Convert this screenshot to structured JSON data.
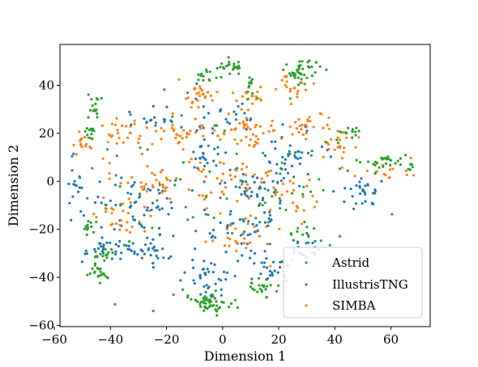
{
  "chart_data": {
    "type": "scatter",
    "title": "",
    "xlabel": "Dimension 1",
    "ylabel": "Dimension 2",
    "xlim": [
      -58,
      74
    ],
    "ylim": [
      -60.5,
      57
    ],
    "xticks": [
      -60,
      -40,
      -20,
      0,
      20,
      40,
      60
    ],
    "yticks": [
      -60,
      -40,
      -20,
      0,
      20,
      40
    ],
    "grid": false,
    "legend": "bottom-right",
    "series": [
      {
        "name": "Astrid",
        "color": "#2ca02c",
        "clusters": [
          {
            "cx": 3,
            "cy": 48,
            "rx": 4,
            "ry": 3,
            "n": 22
          },
          {
            "cx": 28,
            "cy": 46,
            "rx": 6,
            "ry": 4,
            "n": 40
          },
          {
            "cx": -7,
            "cy": 43,
            "rx": 3,
            "ry": 3,
            "n": 12
          },
          {
            "cx": 10,
            "cy": 40,
            "rx": 2,
            "ry": 4,
            "n": 12
          },
          {
            "cx": -46,
            "cy": 30,
            "rx": 2,
            "ry": 4,
            "n": 16
          },
          {
            "cx": -47,
            "cy": 20,
            "rx": 2,
            "ry": 4,
            "n": 12
          },
          {
            "cx": -5,
            "cy": -50,
            "rx": 6,
            "ry": 4,
            "n": 55
          },
          {
            "cx": -44,
            "cy": -38,
            "rx": 3,
            "ry": 3,
            "n": 22
          },
          {
            "cx": -42,
            "cy": -30,
            "rx": 4,
            "ry": 3,
            "n": 14
          },
          {
            "cx": 56,
            "cy": 8,
            "rx": 7,
            "ry": 3,
            "n": 28
          },
          {
            "cx": 66,
            "cy": 7,
            "rx": 2,
            "ry": 2,
            "n": 8
          },
          {
            "cx": 43,
            "cy": 20,
            "rx": 4,
            "ry": 4,
            "n": 14
          },
          {
            "cx": 14,
            "cy": -45,
            "rx": 5,
            "ry": 4,
            "n": 24
          },
          {
            "cx": -48,
            "cy": -20,
            "rx": 3,
            "ry": 4,
            "n": 12
          },
          {
            "cx": 30,
            "cy": -22,
            "rx": 6,
            "ry": 4,
            "n": 14
          },
          {
            "cx": -8,
            "cy": 0,
            "rx": 48,
            "ry": 30,
            "n": 80
          }
        ]
      },
      {
        "name": "IllustrisTNG",
        "color": "#1f77b4",
        "clusters": [
          {
            "cx": -40,
            "cy": -28,
            "rx": 8,
            "ry": 5,
            "n": 30
          },
          {
            "cx": -25,
            "cy": -30,
            "rx": 8,
            "ry": 4,
            "n": 30
          },
          {
            "cx": -5,
            "cy": -40,
            "rx": 8,
            "ry": 6,
            "n": 35
          },
          {
            "cx": 15,
            "cy": -35,
            "rx": 8,
            "ry": 6,
            "n": 30
          },
          {
            "cx": 30,
            "cy": -28,
            "rx": 6,
            "ry": 5,
            "n": 20
          },
          {
            "cx": 50,
            "cy": -5,
            "rx": 6,
            "ry": 6,
            "n": 30
          },
          {
            "cx": -52,
            "cy": 0,
            "rx": 3,
            "ry": 8,
            "n": 20
          },
          {
            "cx": -5,
            "cy": 10,
            "rx": 8,
            "ry": 6,
            "n": 25
          },
          {
            "cx": 10,
            "cy": -5,
            "rx": 10,
            "ry": 10,
            "n": 45
          },
          {
            "cx": -30,
            "cy": -10,
            "rx": 15,
            "ry": 10,
            "n": 55
          },
          {
            "cx": 25,
            "cy": 10,
            "rx": 10,
            "ry": 10,
            "n": 40
          },
          {
            "cx": 0,
            "cy": 28,
            "rx": 10,
            "ry": 6,
            "n": 25
          },
          {
            "cx": -25,
            "cy": 25,
            "rx": 8,
            "ry": 4,
            "n": 20
          },
          {
            "cx": 5,
            "cy": -20,
            "rx": 12,
            "ry": 6,
            "n": 35
          }
        ]
      },
      {
        "name": "SIMBA",
        "color": "#ff7f0e",
        "clusters": [
          {
            "cx": -8,
            "cy": 35,
            "rx": 6,
            "ry": 5,
            "n": 24
          },
          {
            "cx": 25,
            "cy": 40,
            "rx": 5,
            "ry": 4,
            "n": 18
          },
          {
            "cx": 10,
            "cy": 35,
            "rx": 6,
            "ry": 4,
            "n": 18
          },
          {
            "cx": -50,
            "cy": 15,
            "rx": 3,
            "ry": 5,
            "n": 15
          },
          {
            "cx": -35,
            "cy": 20,
            "rx": 10,
            "ry": 6,
            "n": 30
          },
          {
            "cx": -15,
            "cy": 20,
            "rx": 8,
            "ry": 5,
            "n": 25
          },
          {
            "cx": 10,
            "cy": 20,
            "rx": 12,
            "ry": 6,
            "n": 40
          },
          {
            "cx": 30,
            "cy": 25,
            "rx": 8,
            "ry": 5,
            "n": 30
          },
          {
            "cx": 42,
            "cy": 15,
            "rx": 5,
            "ry": 6,
            "n": 20
          },
          {
            "cx": -25,
            "cy": 0,
            "rx": 12,
            "ry": 8,
            "n": 40
          },
          {
            "cx": 0,
            "cy": 0,
            "rx": 10,
            "ry": 8,
            "n": 35
          },
          {
            "cx": 25,
            "cy": -5,
            "rx": 10,
            "ry": 8,
            "n": 30
          },
          {
            "cx": -35,
            "cy": -15,
            "rx": 10,
            "ry": 6,
            "n": 25
          },
          {
            "cx": 5,
            "cy": -25,
            "rx": 12,
            "ry": 8,
            "n": 30
          },
          {
            "cx": 58,
            "cy": 5,
            "rx": 6,
            "ry": 4,
            "n": 15
          }
        ]
      }
    ]
  }
}
